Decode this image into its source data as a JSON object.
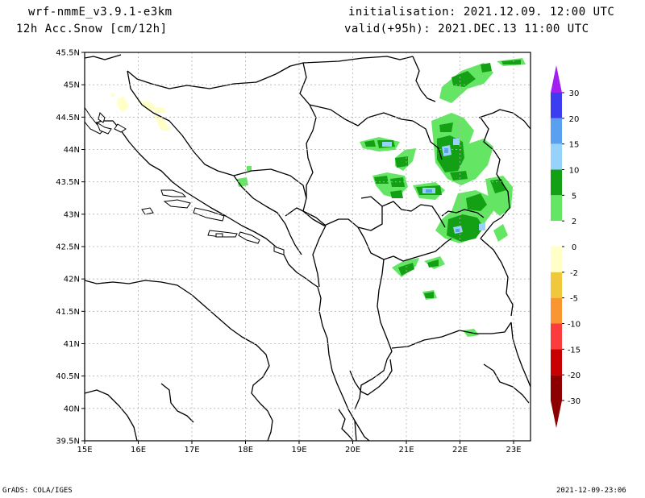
{
  "header": {
    "model": "wrf-nmmE_v3.9.1-e3km",
    "variable": "12h Acc.Snow [cm/12h]",
    "initialisation": "initialisation: 2021.12.09.  12:00 UTC",
    "valid": "valid(+95h): 2021.DEC.13 11:00 UTC"
  },
  "axes": {
    "lat_ticks": [
      "45.5N",
      "45N",
      "44.5N",
      "44N",
      "43.5N",
      "43N",
      "42.5N",
      "42N",
      "41.5N",
      "41N",
      "40.5N",
      "40N",
      "39.5N"
    ],
    "lon_ticks": [
      "15E",
      "16E",
      "17E",
      "18E",
      "19E",
      "20E",
      "21E",
      "22E",
      "23E"
    ]
  },
  "legend": {
    "levels": [
      "30",
      "20",
      "15",
      "10",
      "5",
      "2",
      "0",
      "-2",
      "-5",
      "-10",
      "-15",
      "-20",
      "-30"
    ],
    "colors": [
      "#a020f0",
      "#3c3cf0",
      "#5aa0f0",
      "#96d2fa",
      "#14a014",
      "#64e664",
      "#ffffff",
      "#ffffc8",
      "#f0c83c",
      "#fa9632",
      "#fa3c3c",
      "#c80000",
      "#8c0000"
    ]
  },
  "footer": {
    "left": "GrADS: COLA/IGES",
    "right": "2021-12-09-23:06"
  }
}
